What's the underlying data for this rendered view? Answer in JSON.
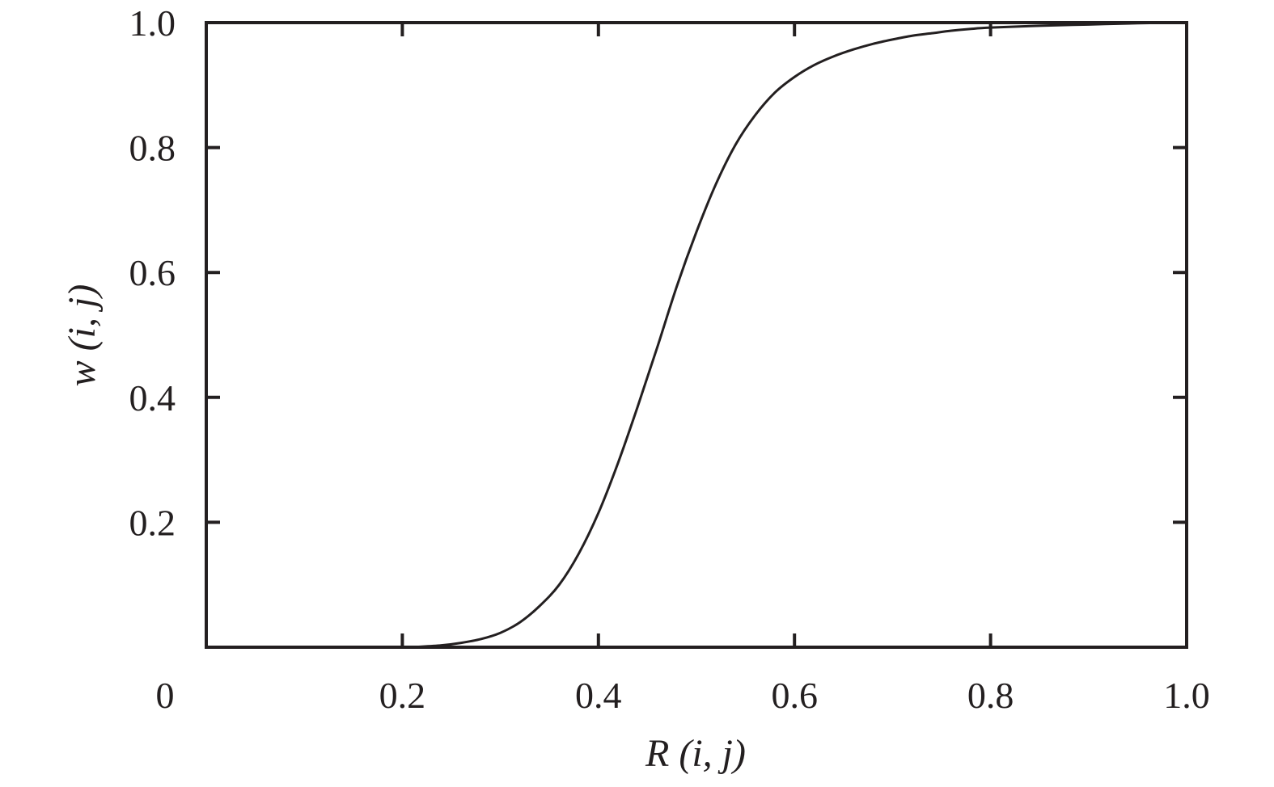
{
  "chart_data": {
    "type": "line",
    "xlabel": "R (i, j)",
    "ylabel": "w (i, j)",
    "xlim": [
      0,
      1
    ],
    "ylim": [
      0,
      1
    ],
    "x_ticks": [
      {
        "value": 0,
        "label": "0"
      },
      {
        "value": 0.2,
        "label": "0.2"
      },
      {
        "value": 0.4,
        "label": "0.4"
      },
      {
        "value": 0.6,
        "label": "0.6"
      },
      {
        "value": 0.8,
        "label": "0.8"
      },
      {
        "value": 1.0,
        "label": "1.0"
      }
    ],
    "y_ticks": [
      {
        "value": 0.2,
        "label": "0.2"
      },
      {
        "value": 0.4,
        "label": "0.4"
      },
      {
        "value": 0.6,
        "label": "0.6"
      },
      {
        "value": 0.8,
        "label": "0.8"
      },
      {
        "value": 1.0,
        "label": "1.0"
      }
    ],
    "grid": false,
    "series": [
      {
        "color": "#231f20",
        "x": [
          0.0,
          0.05,
          0.1,
          0.15,
          0.2,
          0.22,
          0.24,
          0.26,
          0.28,
          0.3,
          0.32,
          0.34,
          0.36,
          0.38,
          0.4,
          0.42,
          0.44,
          0.46,
          0.48,
          0.5,
          0.52,
          0.54,
          0.56,
          0.58,
          0.6,
          0.62,
          0.64,
          0.66,
          0.68,
          0.7,
          0.72,
          0.74,
          0.76,
          0.78,
          0.8,
          0.85,
          0.9,
          0.95,
          1.0
        ],
        "y": [
          0.0,
          0.0,
          0.0,
          0.0,
          0.0,
          0.001,
          0.003,
          0.007,
          0.013,
          0.023,
          0.04,
          0.066,
          0.1,
          0.15,
          0.215,
          0.295,
          0.385,
          0.48,
          0.578,
          0.665,
          0.742,
          0.805,
          0.852,
          0.888,
          0.913,
          0.932,
          0.946,
          0.957,
          0.966,
          0.973,
          0.979,
          0.983,
          0.987,
          0.99,
          0.992,
          0.995,
          0.997,
          0.999,
          1.0
        ]
      }
    ]
  }
}
